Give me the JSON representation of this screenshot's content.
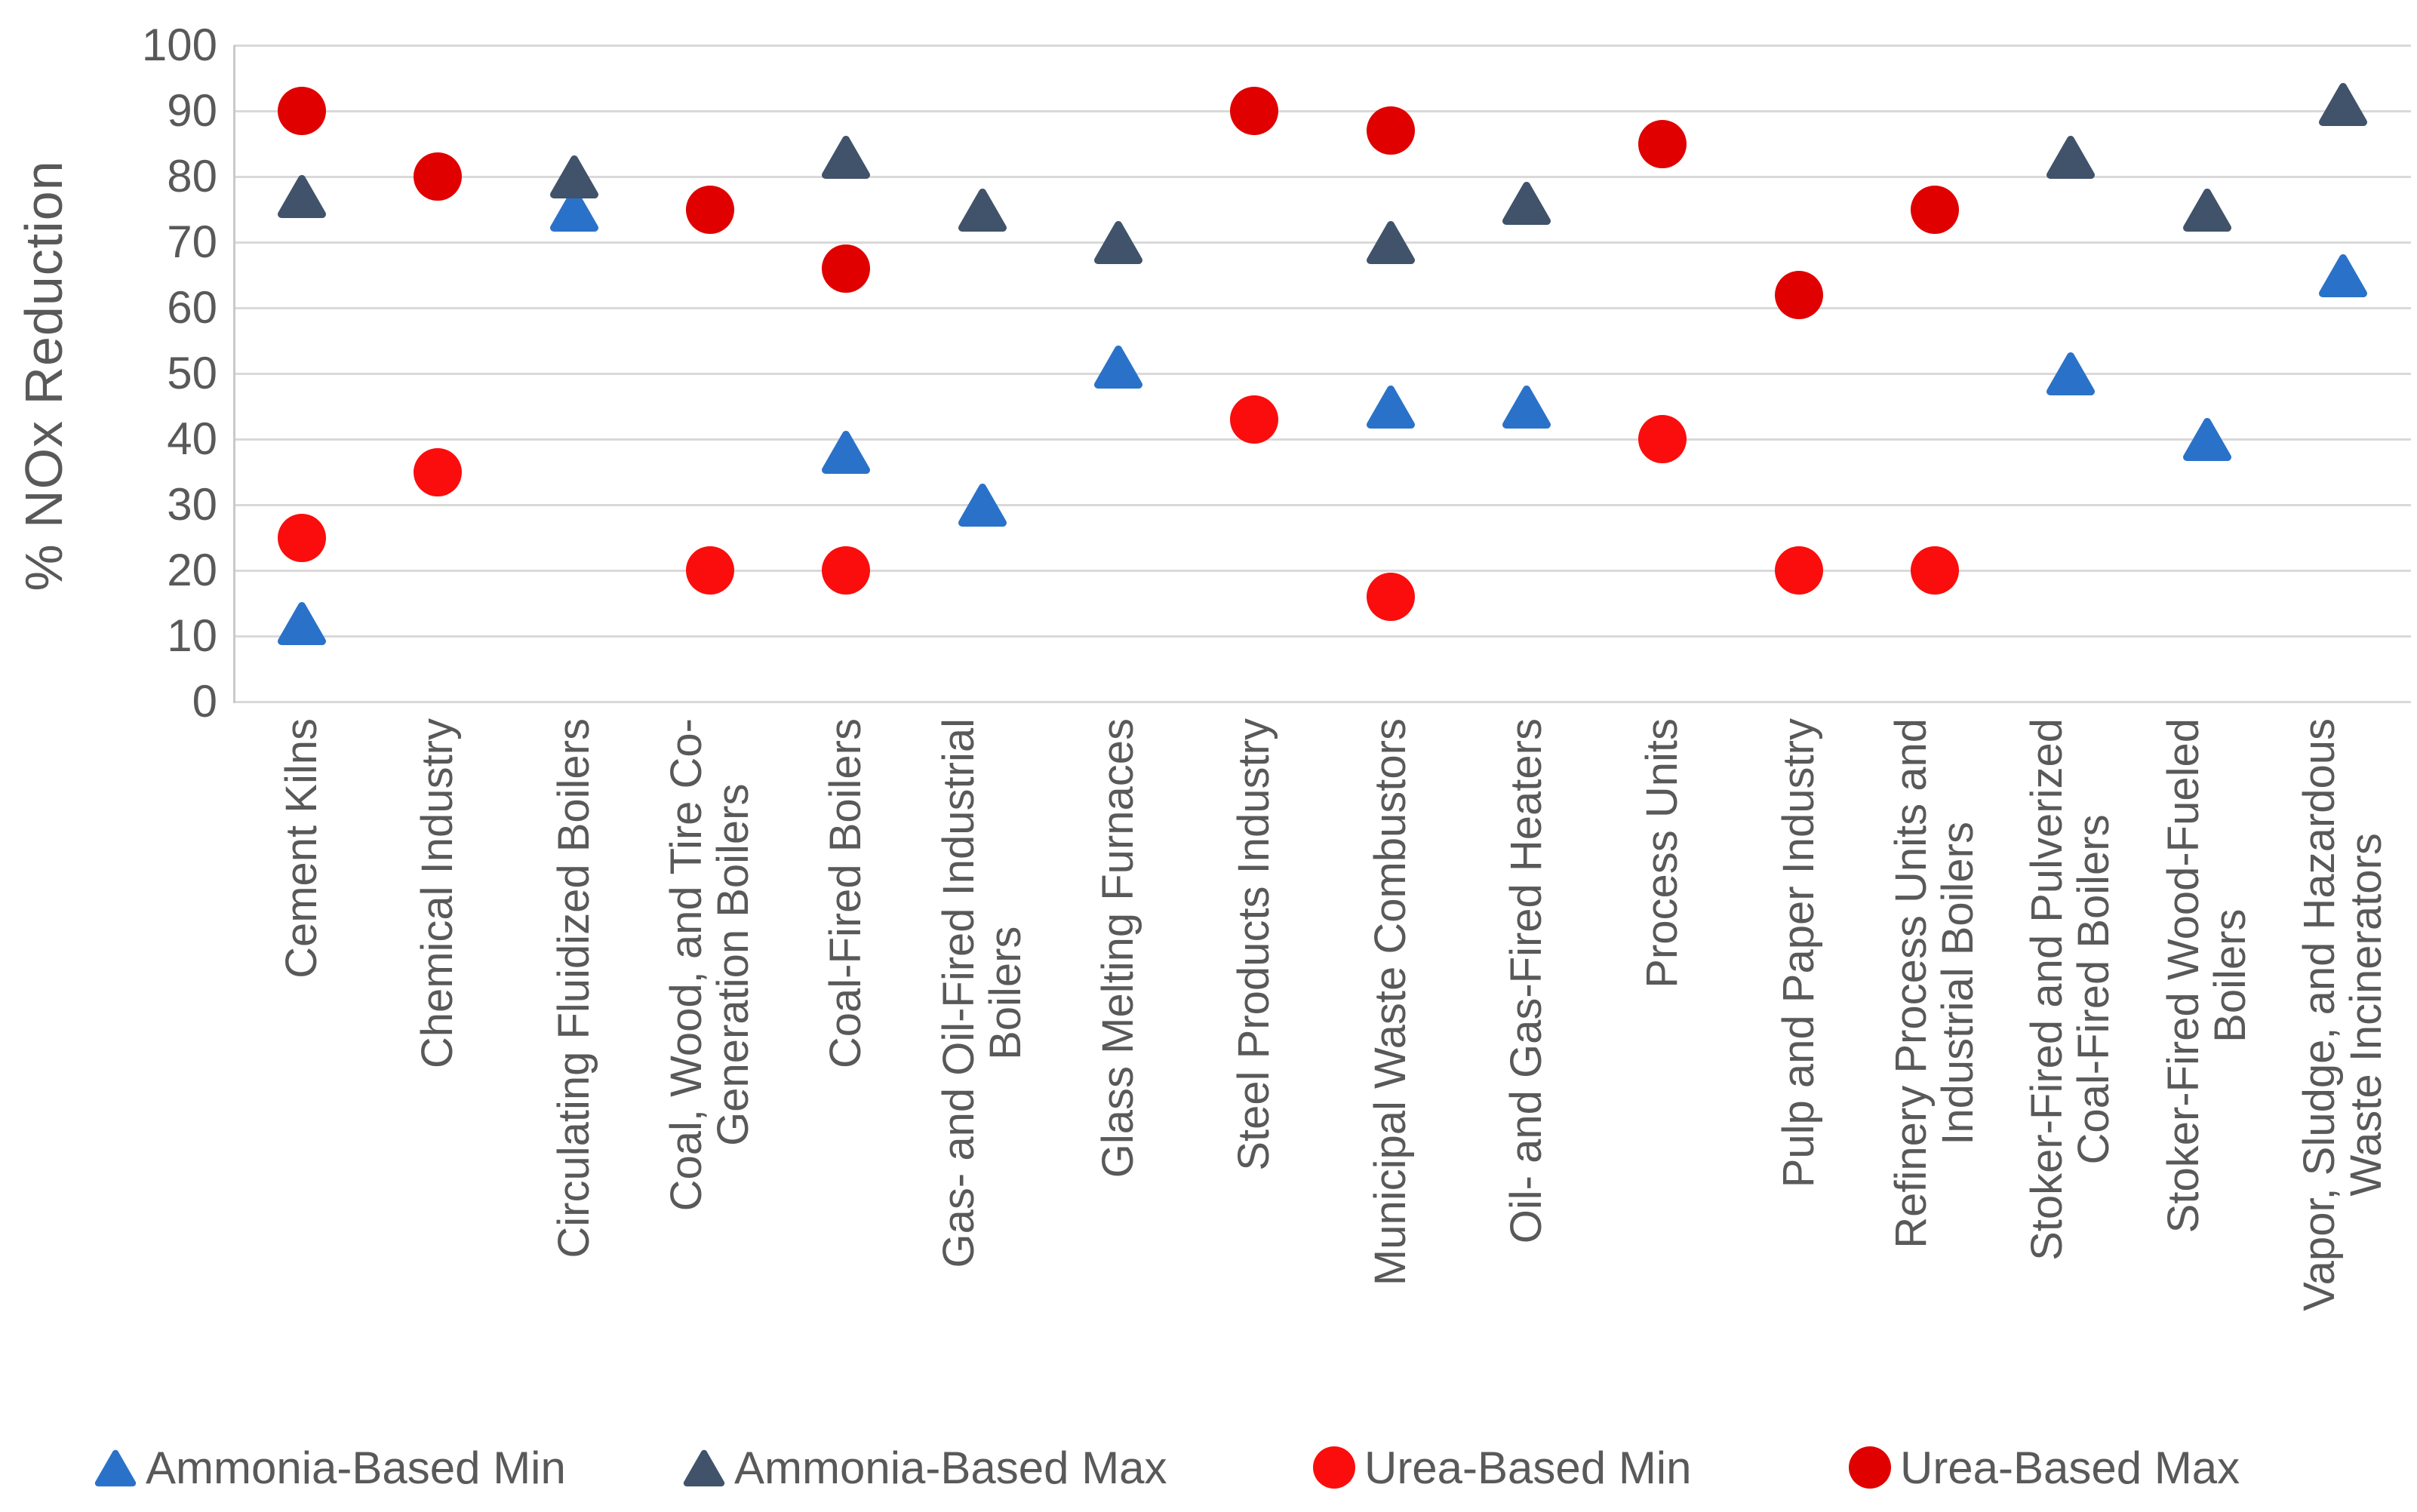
{
  "chart_data": {
    "type": "scatter",
    "ylabel": "% NOx Reduction",
    "ylim": [
      0,
      100
    ],
    "yticks": [
      0,
      10,
      20,
      30,
      40,
      50,
      60,
      70,
      80,
      90,
      100
    ],
    "grid": true,
    "legend_position": "bottom",
    "categories": [
      "Cement Kilns",
      "Chemical Industry",
      "Circulating Fluidized Boilers",
      "Coal, Wood, and Tire Co-Generation Boilers",
      "Coal-Fired Boilers",
      "Gas- and Oil-Fired Industrial Boilers",
      "Glass Melting Furnaces",
      "Steel Products Industry",
      "Municipal Waste Combustors",
      "Oil- and Gas-Fired Heaters",
      "Process Units",
      "Pulp and Paper Industry",
      "Refinery Process Units and Industrial Boilers",
      "Stoker-Fired and Pulverized Coal-Fired Boilers",
      "Stoker-Fired Wood-Fueled Boilers",
      "Vapor, Sludge, and Hazardous Waste Incinerators"
    ],
    "category_label_lines": [
      [
        "Cement Kilns"
      ],
      [
        "Chemical Industry"
      ],
      [
        "Circulating Fluidized Boilers"
      ],
      [
        "Coal, Wood, and Tire Co-",
        "Generation Boilers"
      ],
      [
        "Coal-Fired Boilers"
      ],
      [
        "Gas- and Oil-Fired Industrial",
        "Boilers"
      ],
      [
        "Glass Melting Furnaces"
      ],
      [
        "Steel Products Industry"
      ],
      [
        "Municipal Waste Combustors"
      ],
      [
        "Oil- and Gas-Fired Heaters"
      ],
      [
        "Process Units"
      ],
      [
        "Pulp and Paper Industry"
      ],
      [
        "Refinery Process Units and",
        "Industrial Boilers"
      ],
      [
        "Stoker-Fired and Pulverized",
        "Coal-Fired Boilers"
      ],
      [
        "Stoker-Fired Wood-Fueled",
        "Boilers"
      ],
      [
        "Vapor, Sludge, and Hazardous",
        "Waste Incinerators"
      ]
    ],
    "series": [
      {
        "name": "Ammonia-Based Min",
        "marker": "triangle",
        "color": "#2A72C9",
        "values": [
          12,
          null,
          75,
          null,
          38,
          30,
          51,
          null,
          45,
          45,
          null,
          null,
          null,
          50,
          40,
          65
        ]
      },
      {
        "name": "Ammonia-Based Max",
        "marker": "triangle",
        "color": "#40536A",
        "values": [
          77,
          null,
          80,
          null,
          83,
          75,
          70,
          null,
          70,
          76,
          null,
          null,
          null,
          83,
          75,
          91
        ]
      },
      {
        "name": "Urea-Based Min",
        "marker": "circle",
        "color": "#FB0D0D",
        "values": [
          25,
          35,
          null,
          20,
          20,
          null,
          null,
          43,
          16,
          null,
          40,
          20,
          20,
          null,
          null,
          null
        ]
      },
      {
        "name": "Urea-Based Max",
        "marker": "circle",
        "color": "#E00000",
        "values": [
          90,
          80,
          null,
          75,
          66,
          null,
          null,
          90,
          87,
          null,
          85,
          62,
          75,
          null,
          null,
          null
        ]
      }
    ],
    "colors": {
      "grid": "#D9D9D9",
      "axis_line": "#C9C9C9",
      "text": "#595959"
    }
  }
}
